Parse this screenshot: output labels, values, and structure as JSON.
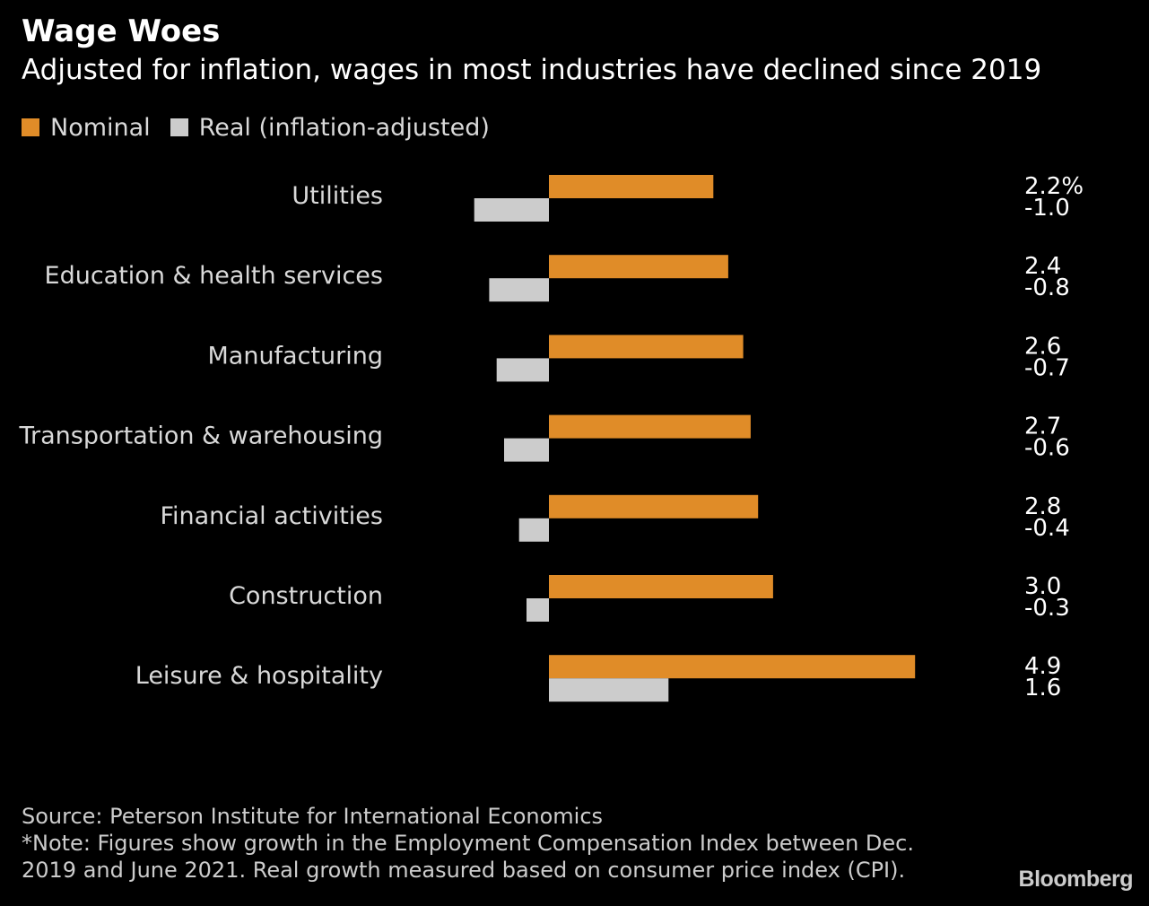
{
  "title": "Wage Woes",
  "subtitle": "Adjusted for inflation, wages in most industries have declined since 2019",
  "legend": {
    "nominal_label": "Nominal",
    "real_label": "Real (inflation-adjusted)"
  },
  "colors": {
    "nominal": "#e08c28",
    "real": "#cccccc",
    "background": "#000000"
  },
  "chart_data": {
    "type": "bar",
    "orientation": "horizontal",
    "categories": [
      "Utilities",
      "Education & health services",
      "Manufacturing",
      "Transportation & warehousing",
      "Financial activities",
      "Construction",
      "Leisure & hospitality"
    ],
    "series": [
      {
        "name": "Nominal",
        "values": [
          2.2,
          2.4,
          2.6,
          2.7,
          2.8,
          3.0,
          4.9
        ],
        "labels": [
          "2.2%",
          "2.4",
          "2.6",
          "2.7",
          "2.8",
          "3.0",
          "4.9"
        ]
      },
      {
        "name": "Real (inflation-adjusted)",
        "values": [
          -1.0,
          -0.8,
          -0.7,
          -0.6,
          -0.4,
          -0.3,
          1.6
        ],
        "labels": [
          "-1.0",
          "-0.8",
          "-0.7",
          "-0.6",
          "-0.4",
          "-0.3",
          "1.6"
        ]
      }
    ],
    "unit": "%",
    "xlim": [
      -1.0,
      4.9
    ]
  },
  "footer": {
    "source": "Source: Peterson Institute for International Economics",
    "note_line1": "*Note: Figures show growth in the Employment Compensation Index between Dec.",
    "note_line2": "2019 and June 2021. Real growth measured based on consumer price index (CPI)."
  },
  "logo": "Bloomberg"
}
